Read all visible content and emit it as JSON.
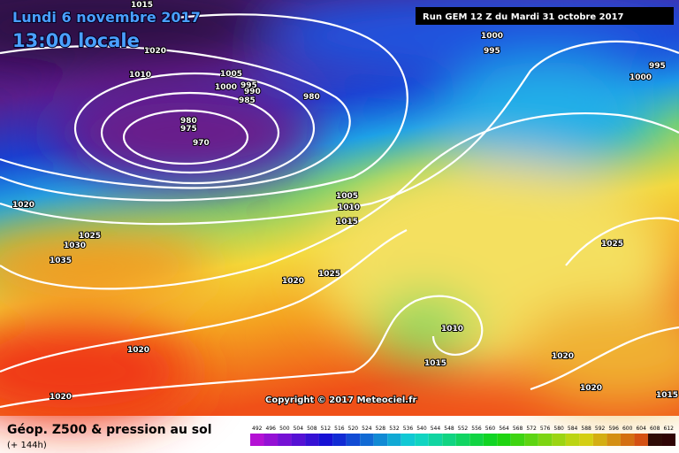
{
  "header": {
    "date": "Lundi 6 novembre 2017",
    "time": "13:00 locale",
    "run": "Run GEM 12 Z du Mardi 31 octobre 2017"
  },
  "isobar_labels": [
    "1015",
    "1020",
    "1010",
    "1005",
    "1000",
    "995",
    "990",
    "985",
    "980",
    "980",
    "975",
    "970",
    "1000",
    "995",
    "995",
    "1000",
    "1005",
    "1010",
    "1015",
    "1020",
    "1025",
    "1030",
    "1035",
    "1020",
    "1025",
    "1025",
    "1010",
    "1015",
    "1020",
    "1020",
    "1020",
    "1020",
    "1015"
  ],
  "copyright": "Copyright © 2017 Meteociel.fr",
  "footer": {
    "title": "Géop. Z500 & pression au sol",
    "lead": "(+ 144h)"
  },
  "legend": {
    "labels": [
      492,
      496,
      500,
      504,
      508,
      512,
      516,
      520,
      524,
      528,
      532,
      536,
      540,
      544,
      548,
      552,
      556,
      560,
      564,
      568,
      572,
      576,
      580,
      584,
      588,
      592,
      596,
      600,
      604,
      608,
      612
    ]
  }
}
